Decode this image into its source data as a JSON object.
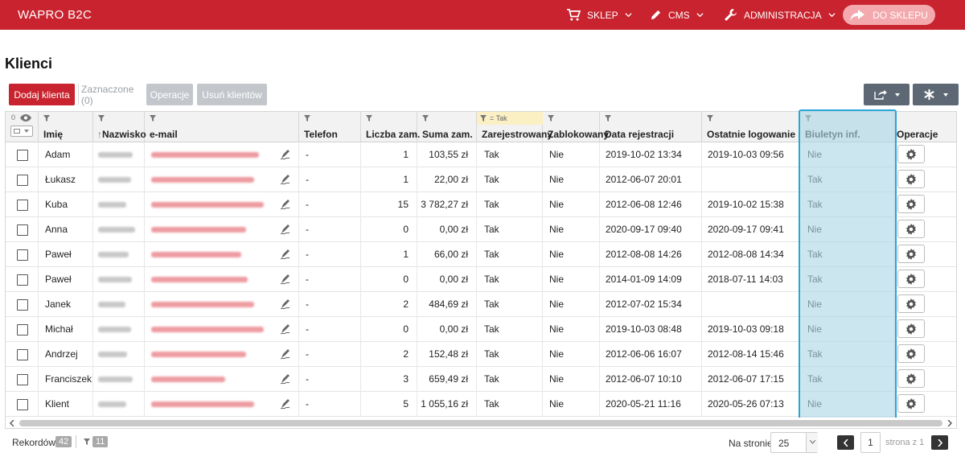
{
  "topbar": {
    "brand": "WAPRO B2C",
    "nav": [
      {
        "label": "SKLEP",
        "icon": "cart-icon"
      },
      {
        "label": "CMS",
        "icon": "pencil-icon"
      },
      {
        "label": "ADMINISTRACJA",
        "icon": "wrench-icon"
      }
    ],
    "shop_button": "DO SKLEPU"
  },
  "page": {
    "title": "Klienci"
  },
  "toolbar": {
    "add_client": "Dodaj klienta",
    "selected": "Zaznaczone (0)",
    "operations": "Operacje",
    "delete_clients": "Usuń klientów"
  },
  "table": {
    "visible_count": "0",
    "columns": [
      "Imię",
      "Nazwisko",
      "e-mail",
      "Telefon",
      "Liczba zam.",
      "Suma zam.",
      "Zarejestrowany",
      "Zablokowany",
      "Data rejestracji",
      "Ostatnie logowanie",
      "Biuletyn inf.",
      "Operacje"
    ],
    "filter_tag": "= Tak",
    "rows": [
      {
        "imie": "Adam",
        "telefon": "-",
        "liczba": "1",
        "suma": "103,55 zł",
        "zarej": "Tak",
        "zablok": "Nie",
        "data_rej": "2019-10-02 13:34",
        "ost_log": "2019-10-03 09:56",
        "biuletyn": "Nie"
      },
      {
        "imie": "Łukasz",
        "telefon": "-",
        "liczba": "1",
        "suma": "22,00 zł",
        "zarej": "Tak",
        "zablok": "Nie",
        "data_rej": "2012-06-07 20:01",
        "ost_log": "",
        "biuletyn": "Tak"
      },
      {
        "imie": "Kuba",
        "telefon": "-",
        "liczba": "15",
        "suma": "3 782,27 zł",
        "zarej": "Tak",
        "zablok": "Nie",
        "data_rej": "2012-06-08 12:46",
        "ost_log": "2019-10-02 15:38",
        "biuletyn": "Tak"
      },
      {
        "imie": "Anna",
        "telefon": "-",
        "liczba": "0",
        "suma": "0,00 zł",
        "zarej": "Tak",
        "zablok": "Nie",
        "data_rej": "2020-09-17 09:40",
        "ost_log": "2020-09-17 09:41",
        "biuletyn": "Nie"
      },
      {
        "imie": "Paweł",
        "telefon": "-",
        "liczba": "1",
        "suma": "66,00 zł",
        "zarej": "Tak",
        "zablok": "Nie",
        "data_rej": "2012-08-08 14:26",
        "ost_log": "2012-08-08 14:34",
        "biuletyn": "Tak"
      },
      {
        "imie": "Paweł",
        "telefon": "-",
        "liczba": "0",
        "suma": "0,00 zł",
        "zarej": "Tak",
        "zablok": "Nie",
        "data_rej": "2014-01-09 14:09",
        "ost_log": "2018-07-11 14:03",
        "biuletyn": "Tak"
      },
      {
        "imie": "Janek",
        "telefon": "-",
        "liczba": "2",
        "suma": "484,69 zł",
        "zarej": "Tak",
        "zablok": "Nie",
        "data_rej": "2012-07-02 15:34",
        "ost_log": "",
        "biuletyn": "Nie"
      },
      {
        "imie": "Michał",
        "telefon": "-",
        "liczba": "0",
        "suma": "0,00 zł",
        "zarej": "Tak",
        "zablok": "Nie",
        "data_rej": "2019-10-03 08:48",
        "ost_log": "2019-10-03 09:18",
        "biuletyn": "Nie"
      },
      {
        "imie": "Andrzej",
        "telefon": "-",
        "liczba": "2",
        "suma": "152,48 zł",
        "zarej": "Tak",
        "zablok": "Nie",
        "data_rej": "2012-06-06 16:07",
        "ost_log": "2012-08-14 15:46",
        "biuletyn": "Tak"
      },
      {
        "imie": "Franciszek",
        "telefon": "-",
        "liczba": "3",
        "suma": "659,49 zł",
        "zarej": "Tak",
        "zablok": "Nie",
        "data_rej": "2012-06-07 10:10",
        "ost_log": "2012-06-07 17:15",
        "biuletyn": "Tak"
      },
      {
        "imie": "Klient",
        "telefon": "-",
        "liczba": "5",
        "suma": "1 055,16 zł",
        "zarej": "Tak",
        "zablok": "Nie",
        "data_rej": "2020-05-21 11:16",
        "ost_log": "2020-05-26 07:13",
        "biuletyn": "Nie"
      }
    ]
  },
  "footer": {
    "records_label": "Rekordów:",
    "records_count": "42",
    "filter_count": "11",
    "per_page_label": "Na stronie",
    "per_page_value": "25",
    "page_number": "1",
    "page_of": "strona z 1"
  },
  "colors": {
    "brand_red": "#c8232e",
    "highlight_border": "#28a6da",
    "highlight_fill": "#add6e6"
  }
}
